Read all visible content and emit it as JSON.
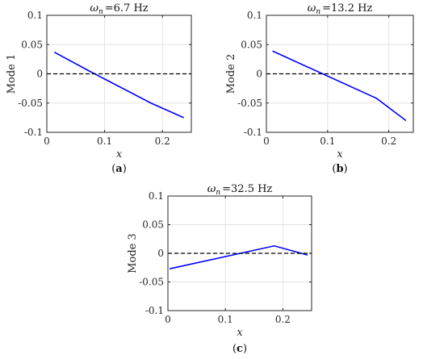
{
  "chart_data": [
    {
      "type": "line",
      "panel_label": "(a)",
      "title_symbol": "ω",
      "title_subscript": "n",
      "title_value": "=6.7 Hz",
      "xlabel": "x",
      "ylabel": "Mode 1",
      "xlim": [
        0,
        0.25
      ],
      "ylim": [
        -0.1,
        0.1
      ],
      "xticks": [
        "0",
        "0.1",
        "0.2"
      ],
      "yticks": [
        "-0.1",
        "-0.05",
        "0",
        "0.05",
        "0.1"
      ],
      "grid": true,
      "series": [
        {
          "color": "#0000ff",
          "style": "solid",
          "x": [
            0.013,
            0.073,
            0.18,
            0.237
          ],
          "y": [
            0.037,
            0.005,
            -0.05,
            -0.075
          ]
        },
        {
          "color": "#000000",
          "style": "dashed",
          "x": [
            0,
            0.25
          ],
          "y": [
            0,
            0
          ]
        }
      ]
    },
    {
      "type": "line",
      "panel_label": "(b)",
      "title_symbol": "ω",
      "title_subscript": "n",
      "title_value": "=13.2 Hz",
      "xlabel": "x",
      "ylabel": "Mode 2",
      "xlim": [
        0,
        0.24
      ],
      "ylim": [
        -0.1,
        0.1
      ],
      "xticks": [
        "0",
        "0.1",
        "0.2"
      ],
      "yticks": [
        "-0.1",
        "-0.05",
        "0",
        "0.05",
        "0.1"
      ],
      "grid": true,
      "series": [
        {
          "color": "#0000ff",
          "style": "solid",
          "x": [
            0.01,
            0.18,
            0.228
          ],
          "y": [
            0.039,
            -0.042,
            -0.08
          ]
        },
        {
          "color": "#000000",
          "style": "dashed",
          "x": [
            0,
            0.24
          ],
          "y": [
            0,
            0
          ]
        }
      ]
    },
    {
      "type": "line",
      "panel_label": "(c)",
      "title_symbol": "ω",
      "title_subscript": "n",
      "title_value": "=32.5 Hz",
      "xlabel": "x",
      "ylabel": "Mode 3",
      "xlim": [
        0,
        0.25
      ],
      "ylim": [
        -0.1,
        0.1
      ],
      "xticks": [
        "0",
        "0.1",
        "0.2"
      ],
      "yticks": [
        "-0.1",
        "-0.05",
        "0",
        "0.05",
        "0.1"
      ],
      "grid": true,
      "series": [
        {
          "color": "#0000ff",
          "style": "solid",
          "x": [
            0.003,
            0.185,
            0.243
          ],
          "y": [
            -0.027,
            0.013,
            -0.003
          ]
        },
        {
          "color": "#000000",
          "style": "dashed",
          "x": [
            0,
            0.25
          ],
          "y": [
            0,
            0
          ]
        }
      ]
    }
  ]
}
